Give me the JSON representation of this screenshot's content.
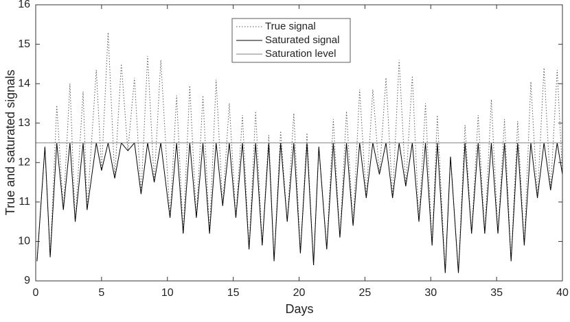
{
  "chart_data": {
    "type": "line",
    "xlabel": "Days",
    "ylabel": "True and saturated signals",
    "x": [
      0.1,
      0.7,
      1.1,
      1.6,
      2.1,
      2.6,
      3.0,
      3.6,
      3.9,
      4.6,
      5.0,
      5.5,
      6.0,
      6.5,
      7.0,
      7.5,
      8.0,
      8.5,
      9.0,
      9.5,
      10.2,
      10.7,
      11.2,
      11.7,
      12.2,
      12.7,
      13.2,
      13.7,
      14.2,
      14.7,
      15.2,
      15.7,
      16.2,
      16.7,
      17.2,
      17.7,
      18.1,
      18.6,
      19.1,
      19.6,
      20.1,
      20.6,
      21.1,
      21.5,
      22.1,
      22.6,
      23.1,
      23.6,
      24.1,
      24.6,
      25.1,
      25.6,
      26.1,
      26.6,
      27.1,
      27.6,
      28.1,
      28.6,
      29.1,
      29.6,
      30.1,
      30.5,
      31.1,
      31.5,
      32.1,
      32.6,
      33.1,
      33.6,
      34.1,
      34.6,
      35.1,
      35.6,
      36.1,
      36.6,
      37.1,
      37.6,
      38.1,
      38.6,
      39.1,
      39.6,
      40
    ],
    "series": [
      {
        "name": "True signal",
        "color": "#555555",
        "dash": "dotted",
        "values": [
          9.5,
          12.4,
          9.6,
          13.45,
          10.8,
          14.0,
          10.5,
          13.8,
          10.8,
          14.35,
          11.8,
          15.3,
          11.6,
          14.5,
          12.3,
          14.15,
          11.2,
          14.7,
          11.5,
          14.6,
          10.6,
          13.7,
          10.2,
          13.95,
          10.6,
          13.7,
          10.2,
          14.1,
          10.9,
          13.5,
          10.6,
          13.2,
          9.8,
          13.3,
          9.9,
          12.7,
          9.5,
          12.8,
          10.5,
          13.25,
          9.7,
          12.75,
          9.4,
          12.4,
          9.8,
          13.1,
          10.1,
          13.3,
          10.4,
          13.85,
          11.1,
          13.85,
          11.7,
          14.15,
          11.1,
          14.6,
          11.4,
          14.2,
          10.5,
          13.5,
          9.9,
          13.2,
          9.2,
          12.15,
          9.2,
          12.95,
          10.2,
          13.2,
          10.2,
          13.6,
          10.2,
          13.1,
          9.5,
          13.05,
          9.9,
          14.05,
          11.1,
          14.4,
          11.3,
          14.35,
          11.7
        ]
      },
      {
        "name": "Saturated signal",
        "color": "#000000",
        "dash": "solid",
        "values": [
          9.5,
          12.4,
          9.6,
          12.5,
          10.8,
          12.5,
          10.5,
          12.5,
          10.8,
          12.5,
          11.8,
          12.5,
          11.6,
          12.5,
          12.3,
          12.5,
          11.2,
          12.5,
          11.5,
          12.5,
          10.6,
          12.5,
          10.2,
          12.5,
          10.6,
          12.5,
          10.2,
          12.5,
          10.9,
          12.5,
          10.6,
          12.5,
          9.8,
          12.5,
          9.9,
          12.5,
          9.5,
          12.5,
          10.5,
          12.5,
          9.7,
          12.5,
          9.4,
          12.4,
          9.8,
          12.5,
          10.1,
          12.5,
          10.4,
          12.5,
          11.1,
          12.5,
          11.7,
          12.5,
          11.1,
          12.5,
          11.4,
          12.5,
          10.5,
          12.5,
          9.9,
          12.5,
          9.2,
          12.15,
          9.2,
          12.5,
          10.2,
          12.5,
          10.2,
          12.5,
          10.2,
          12.5,
          9.5,
          12.5,
          9.9,
          12.5,
          11.1,
          12.5,
          11.3,
          12.5,
          11.7
        ]
      }
    ],
    "hlines": [
      {
        "name": "Saturation level",
        "color": "#999999",
        "value": 12.5
      }
    ],
    "xlim": [
      0,
      40
    ],
    "xticks": [
      0,
      5,
      10,
      15,
      20,
      25,
      30,
      35,
      40
    ],
    "ylim": [
      9,
      16
    ],
    "yticks": [
      9,
      10,
      11,
      12,
      13,
      14,
      15,
      16
    ],
    "legend": "top"
  }
}
